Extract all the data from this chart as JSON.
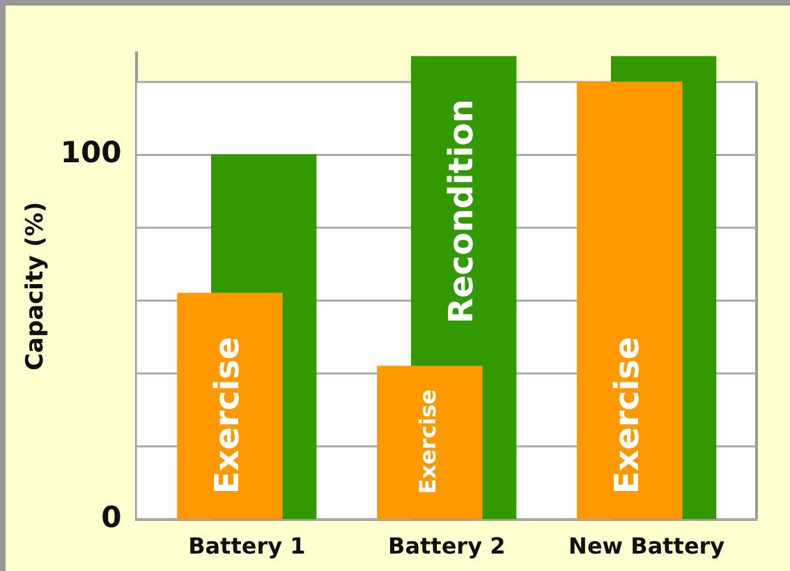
{
  "chart_data": {
    "type": "bar",
    "ylabel": "Capacity (%)",
    "categories": [
      "Battery 1",
      "Battery 2",
      "New Battery"
    ],
    "series": [
      {
        "name": "Exercise",
        "color": "#ff9900",
        "values": [
          62,
          42,
          120
        ]
      },
      {
        "name": "Recondition",
        "color": "#339900",
        "values": [
          100,
          127,
          127
        ]
      }
    ],
    "ylim": [
      0,
      128
    ],
    "yticks": [
      0,
      {
        "value": 20,
        "label": null
      },
      {
        "value": 40,
        "label": null
      },
      {
        "value": 60,
        "label": null
      },
      {
        "value": 80,
        "label": null
      },
      100,
      {
        "value": 120,
        "label": null
      }
    ],
    "grid": "y",
    "legend": false
  }
}
